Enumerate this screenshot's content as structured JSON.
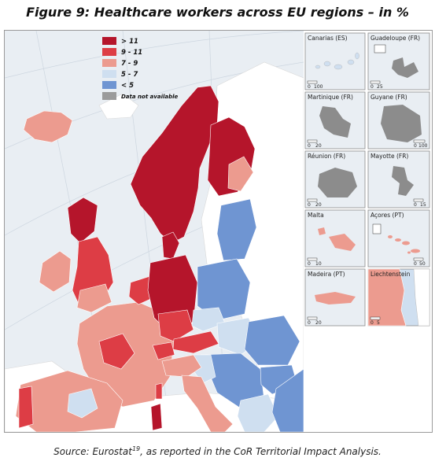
{
  "title": "Figure 9: Healthcare workers across EU regions – in %",
  "source": {
    "prefix": "Source: Eurostat",
    "footnote": "19",
    "suffix": ", as reported in the CoR Territorial Impact Analysis."
  },
  "legend": [
    {
      "label": "> 11",
      "color": "#b5152b"
    },
    {
      "label": "9 - 11",
      "color": "#dd3d45"
    },
    {
      "label": "7 - 9",
      "color": "#ec9b8f"
    },
    {
      "label": "5 - 7",
      "color": "#cfdff0"
    },
    {
      "label": "< 5",
      "color": "#6f95d2"
    },
    {
      "label": "Data not available",
      "color": "#9b9b9b"
    }
  ],
  "insets": [
    {
      "title": "Canarias (ES)",
      "scale_max": "100"
    },
    {
      "title": "Guadeloupe (FR)",
      "scale_max": "25"
    },
    {
      "title": "Martinique (FR)",
      "scale_max": "20"
    },
    {
      "title": "Guyane (FR)",
      "scale_max": "100"
    },
    {
      "title": "Réunion (FR)",
      "scale_max": "20"
    },
    {
      "title": "Mayotte (FR)",
      "scale_max": "15"
    },
    {
      "title": "Malta",
      "scale_max": "10"
    },
    {
      "title": "Açores (PT)",
      "scale_max": "50"
    },
    {
      "title": "Madeira (PT)",
      "scale_max": "20"
    },
    {
      "title": "Liechtenstein",
      "scale_max": "5"
    }
  ],
  "scale_zero": "0",
  "colors": {
    "sea": "#e9eef3",
    "non_eu_land": "#ffffff",
    "border": "#ffffff",
    "inset_gray": "#8c8c8c"
  }
}
